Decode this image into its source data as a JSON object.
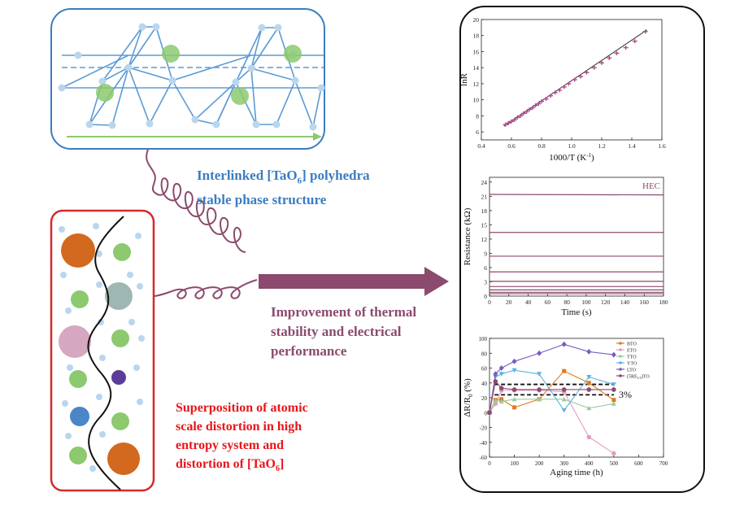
{
  "captions": {
    "structure_line1": "Interlinked [TaO",
    "structure_sub": "6",
    "structure_line1_end": "] polyhedra",
    "structure_line2": "stable phase structure",
    "distortion_lines": [
      "Superposition of atomic",
      "scale distortion in high",
      "entropy system and",
      "distortion of [TaO"
    ],
    "distortion_sub": "6",
    "distortion_end": "]",
    "improvement_lines": [
      "Improvement of thermal",
      "stability and electrical",
      "performance"
    ]
  },
  "colors": {
    "blue_box": "#3b7dc1",
    "red_box": "#d62a2a",
    "arrow": "#8b4a6e",
    "polyhedra": "#5b9bd5",
    "atom_green": "#8cc96f",
    "atom_light_blue": "#b9d6ee",
    "atom_orange": "#d2691e",
    "atom_teal": "#9fb7b2",
    "atom_pink": "#d6a7c0",
    "atom_purple": "#5a3d9a",
    "atom_blue": "#4a86c8"
  },
  "chart_data": [
    {
      "type": "scatter",
      "title": "",
      "xlabel": "1000/T (K",
      "xlabel_sup": "-1",
      "xlabel_end": ")",
      "ylabel": "lnR",
      "xlim": [
        0.4,
        1.6
      ],
      "ylim": [
        5,
        20
      ],
      "xticks": [
        "0.4",
        "0.6",
        "0.8",
        "1.0",
        "1.2",
        "1.4",
        "1.6"
      ],
      "yticks": [
        "6",
        "8",
        "10",
        "12",
        "14",
        "16",
        "18",
        "20"
      ],
      "series": [
        {
          "x": [
            0.56,
            0.58,
            0.6,
            0.62,
            0.64,
            0.66,
            0.68,
            0.7,
            0.72,
            0.74,
            0.76,
            0.78,
            0.8,
            0.83,
            0.86,
            0.89,
            0.92,
            0.95,
            0.98,
            1.02,
            1.06,
            1.1,
            1.15,
            1.2,
            1.25,
            1.3,
            1.36,
            1.42,
            1.49
          ],
          "y": [
            6.9,
            7.1,
            7.3,
            7.5,
            7.8,
            8.0,
            8.3,
            8.5,
            8.8,
            9.0,
            9.3,
            9.5,
            9.8,
            10.1,
            10.5,
            10.9,
            11.2,
            11.6,
            12.0,
            12.5,
            12.9,
            13.4,
            14.0,
            14.6,
            15.2,
            15.8,
            16.5,
            17.3,
            18.5
          ]
        }
      ],
      "fit_line": {
        "x": [
          0.55,
          1.5
        ],
        "y": [
          6.7,
          18.7
        ]
      }
    },
    {
      "type": "line",
      "title": "",
      "annotation": "HEC",
      "xlabel": "Time (s)",
      "ylabel": "Resistance (kΩ)",
      "xlim": [
        0,
        180
      ],
      "ylim": [
        0,
        25
      ],
      "xticks": [
        "0",
        "20",
        "40",
        "60",
        "80",
        "100",
        "120",
        "140",
        "160",
        "180"
      ],
      "yticks": [
        "0",
        "3",
        "6",
        "9",
        "12",
        "15",
        "18",
        "21",
        "24"
      ],
      "series": [
        {
          "x": [
            0,
            180
          ],
          "y": [
            21.4,
            21.3
          ]
        },
        {
          "x": [
            0,
            180
          ],
          "y": [
            13.4,
            13.4
          ]
        },
        {
          "x": [
            0,
            180
          ],
          "y": [
            8.4,
            8.4
          ]
        },
        {
          "x": [
            0,
            180
          ],
          "y": [
            5.1,
            5.1
          ]
        },
        {
          "x": [
            0,
            180
          ],
          "y": [
            3.1,
            3.1
          ]
        },
        {
          "x": [
            0,
            180
          ],
          "y": [
            2.0,
            2.0
          ]
        },
        {
          "x": [
            0,
            180
          ],
          "y": [
            1.3,
            1.3
          ]
        },
        {
          "x": [
            0,
            180
          ],
          "y": [
            0.8,
            0.8
          ]
        },
        {
          "x": [
            0,
            180
          ],
          "y": [
            0.5,
            0.5
          ]
        }
      ]
    },
    {
      "type": "line",
      "title": "",
      "xlabel": "Aging time (h)",
      "ylabel": "ΔR/R",
      "ylabel_sub": "0",
      "ylabel_end": " (%)",
      "xlim": [
        0,
        700
      ],
      "ylim": [
        -60,
        100
      ],
      "xticks": [
        "0",
        "100",
        "200",
        "300",
        "400",
        "500",
        "600",
        "700"
      ],
      "yticks": [
        "-60",
        "-40",
        "-20",
        "0",
        "20",
        "40",
        "60",
        "80",
        "100"
      ],
      "annotation": "3%",
      "dashed_levels": [
        38,
        24
      ],
      "series": [
        {
          "name": "BTO",
          "color": "#e07b1a",
          "marker": "square",
          "x": [
            0,
            24,
            48,
            100,
            200,
            300,
            400,
            500
          ],
          "y": [
            0,
            17,
            18,
            7,
            18,
            56,
            40,
            17
          ]
        },
        {
          "name": "ETO",
          "color": "#e59ac2",
          "marker": "circle",
          "x": [
            0,
            24,
            48,
            100,
            200,
            300,
            400,
            500
          ],
          "y": [
            0,
            12,
            30,
            30,
            30,
            28,
            -33,
            -55
          ]
        },
        {
          "name": "TTO",
          "color": "#9ccaa0",
          "marker": "triangle",
          "x": [
            0,
            24,
            48,
            100,
            200,
            300,
            400,
            500
          ],
          "y": [
            0,
            16,
            15,
            18,
            18,
            18,
            6,
            12
          ]
        },
        {
          "name": "YTO",
          "color": "#5ab4e0",
          "marker": "triangle-down",
          "x": [
            0,
            24,
            48,
            100,
            200,
            300,
            400,
            500
          ],
          "y": [
            0,
            48,
            52,
            57,
            52,
            3,
            48,
            38
          ]
        },
        {
          "name": "LTO",
          "color": "#7a5cc0",
          "marker": "diamond",
          "x": [
            0,
            24,
            48,
            100,
            200,
            300,
            400,
            500
          ],
          "y": [
            0,
            52,
            60,
            69,
            80,
            92,
            82,
            78
          ]
        },
        {
          "name": "(5RE",
          "name_sub": "1/5",
          "name_end": ")TO",
          "color": "#8b4a6e",
          "marker": "circle",
          "x": [
            0,
            24,
            48,
            100,
            200,
            300,
            400,
            500
          ],
          "y": [
            0,
            42,
            33,
            31,
            31,
            31,
            31,
            31
          ]
        }
      ]
    }
  ]
}
